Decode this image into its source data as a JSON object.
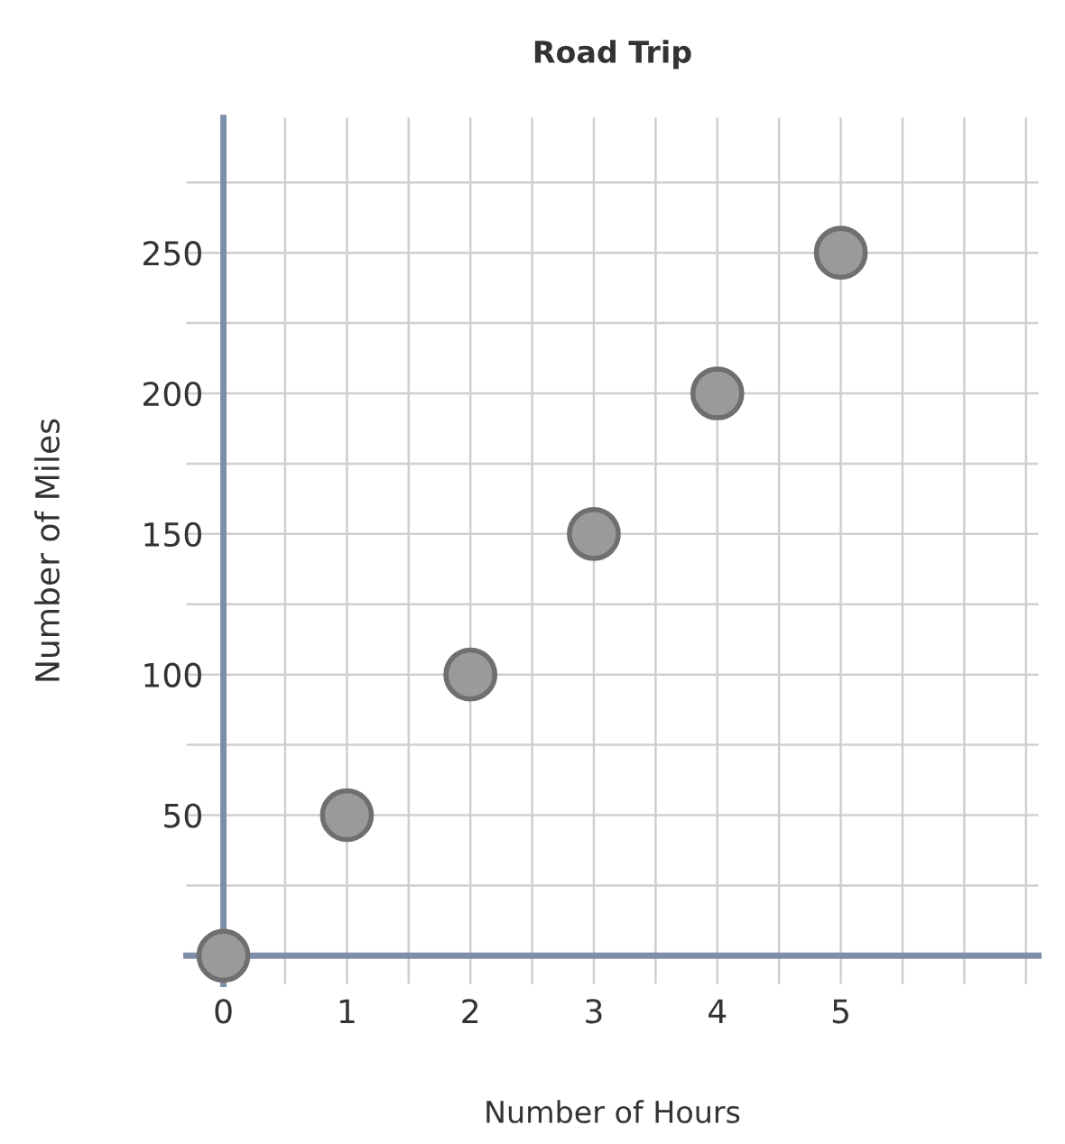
{
  "chart_data": {
    "type": "scatter",
    "title": "Road Trip",
    "xlabel": "Number of Hours",
    "ylabel": "Number of Miles",
    "x": [
      0,
      1,
      2,
      3,
      4,
      5
    ],
    "series": [
      {
        "color": "#9a9a9a",
        "values": [
          0,
          50,
          100,
          150,
          200,
          250
        ]
      }
    ],
    "xlim": [
      -0.3,
      6.6
    ],
    "ylim": [
      -10,
      298
    ],
    "xticks": [
      0,
      {
        "value": 0.5,
        "label": null
      },
      1,
      {
        "value": 1.5,
        "label": null
      },
      2,
      {
        "value": 2.5,
        "label": null
      },
      3,
      {
        "value": 3.5,
        "label": null
      },
      4,
      {
        "value": 4.5,
        "label": null
      },
      5,
      {
        "value": 5.5,
        "label": null
      },
      {
        "value": 6,
        "label": null
      },
      {
        "value": 6.5,
        "label": null
      }
    ],
    "yticks": [
      {
        "value": 25,
        "label": null
      },
      50,
      {
        "value": 75,
        "label": null
      },
      100,
      {
        "value": 125,
        "label": null
      },
      150,
      {
        "value": 175,
        "label": null
      },
      200,
      {
        "value": 225,
        "label": null
      },
      250,
      {
        "value": 275,
        "label": null
      }
    ],
    "grid": true,
    "marker": "circle"
  }
}
